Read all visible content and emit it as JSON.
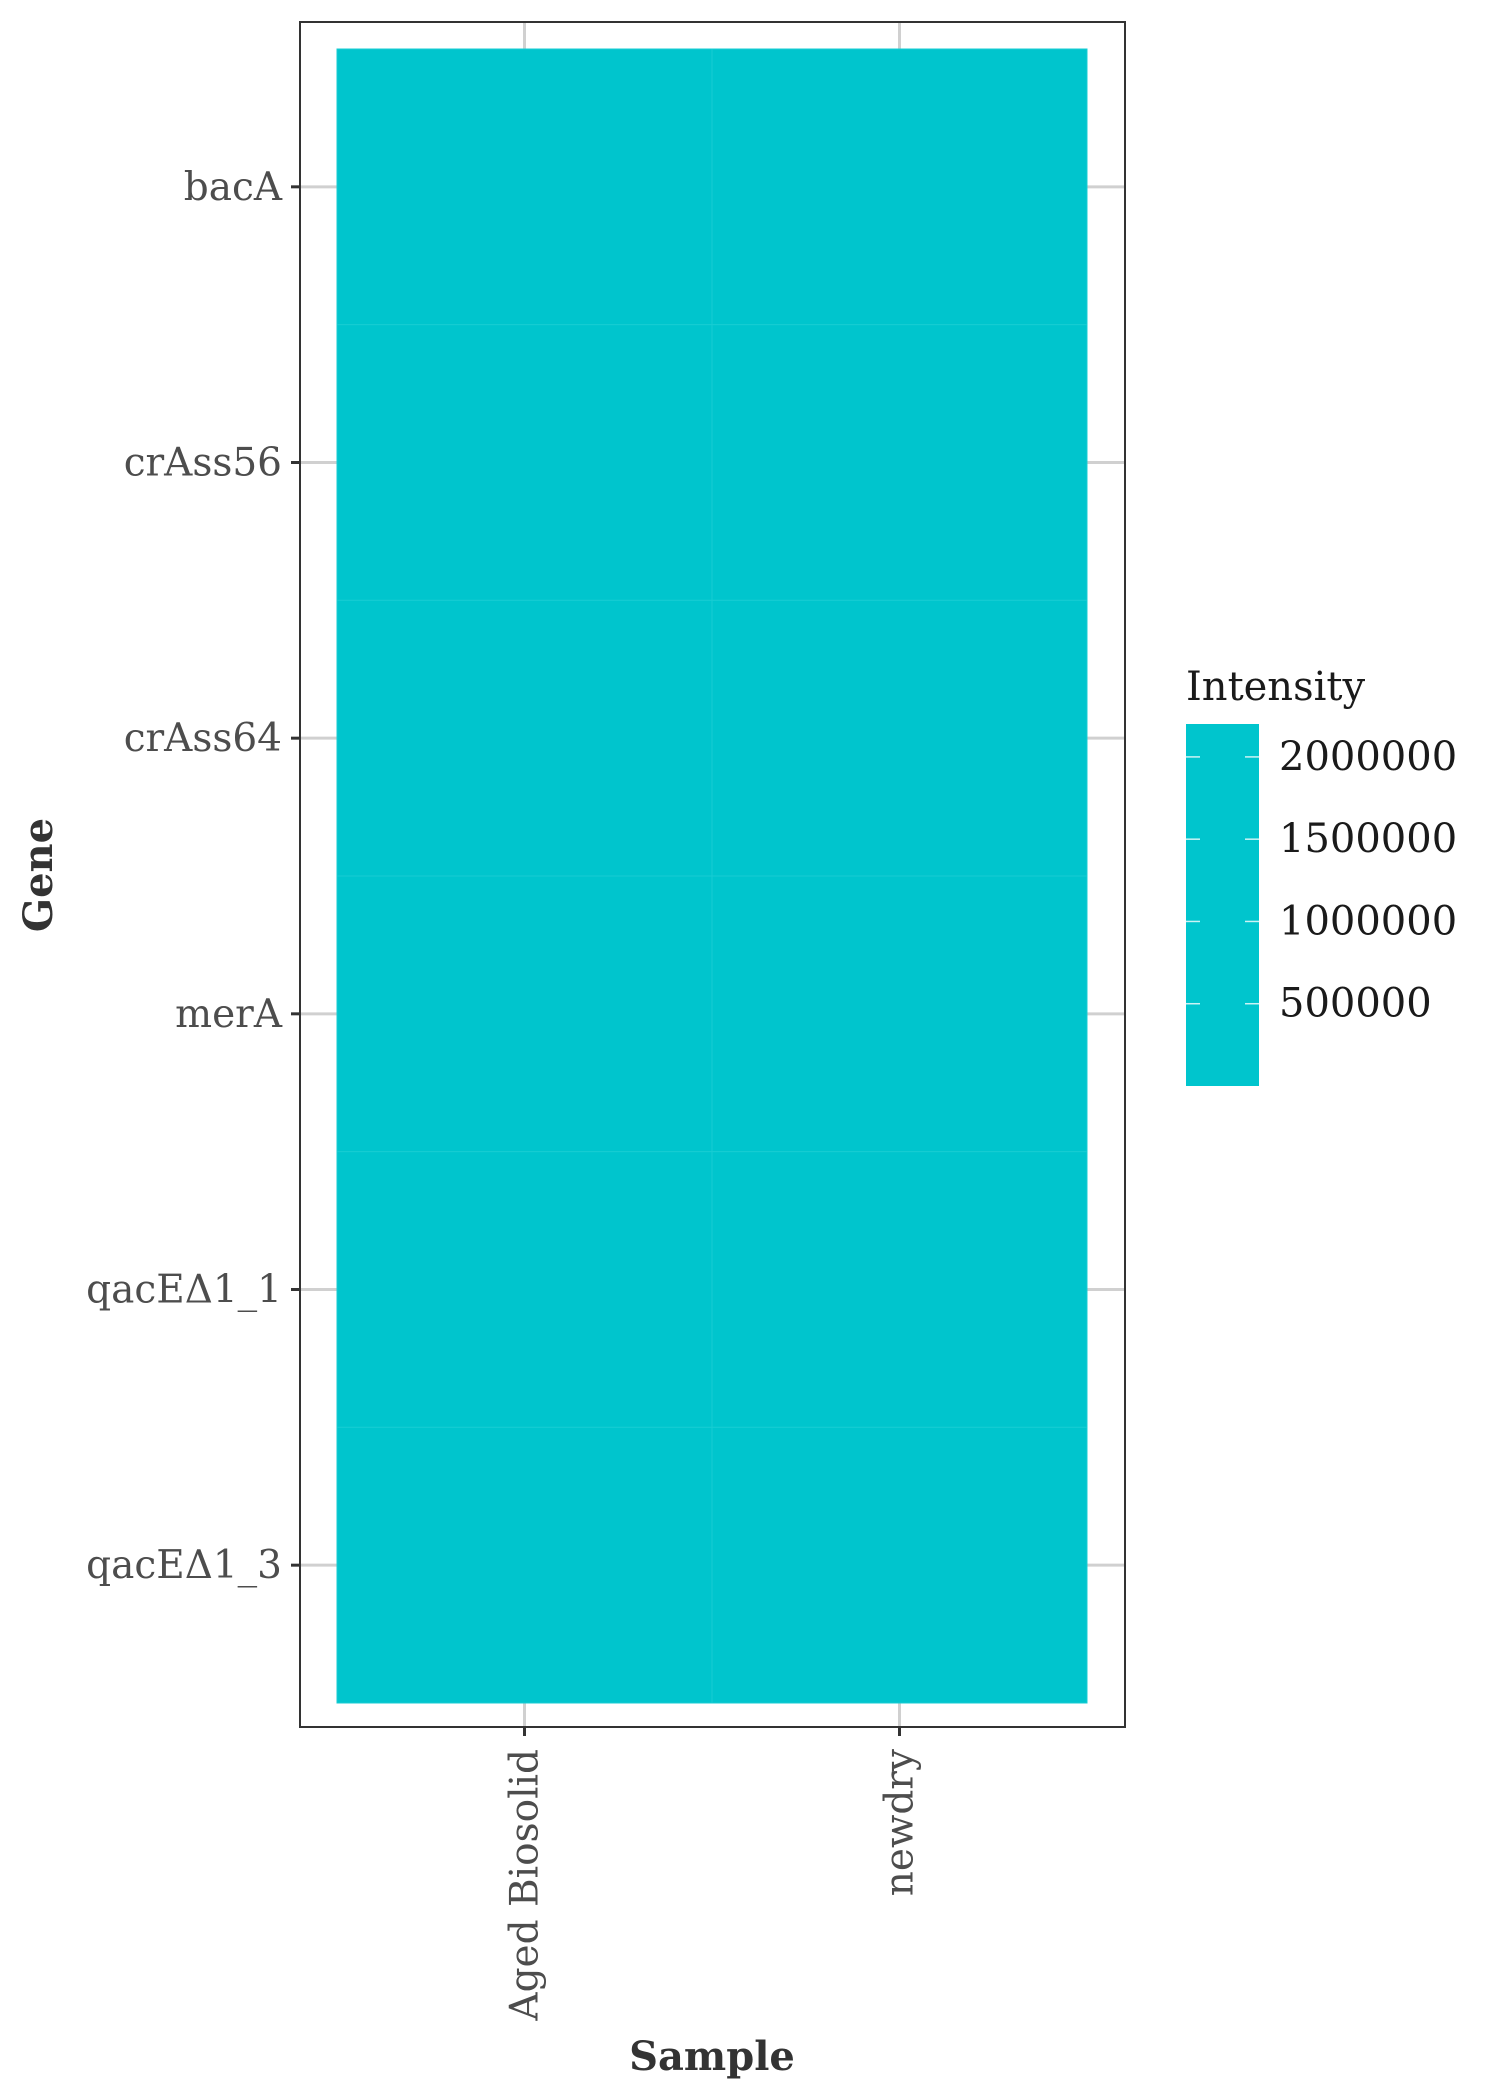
{
  "chart_data": {
    "type": "heatmap",
    "title": "",
    "xlabel": "Sample",
    "ylabel": "Gene",
    "x": [
      "Aged Biosolid",
      "newdry"
    ],
    "y": [
      "bacA",
      "crAss56",
      "crAss64",
      "merA",
      "qacEΔ1_1",
      "qacEΔ1_3"
    ],
    "cells": [
      {
        "x": "Aged Biosolid",
        "y": "bacA",
        "value": 2000000
      },
      {
        "x": "newdry",
        "y": "bacA",
        "value": 2000000
      },
      {
        "x": "Aged Biosolid",
        "y": "crAss56",
        "value": 2000000
      },
      {
        "x": "newdry",
        "y": "crAss56",
        "value": 2000000
      },
      {
        "x": "Aged Biosolid",
        "y": "crAss64",
        "value": 2000000
      },
      {
        "x": "newdry",
        "y": "crAss64",
        "value": 2000000
      },
      {
        "x": "Aged Biosolid",
        "y": "merA",
        "value": 2000000
      },
      {
        "x": "newdry",
        "y": "merA",
        "value": 2000000
      },
      {
        "x": "Aged Biosolid",
        "y": "qacEΔ1_1",
        "value": 2000000
      },
      {
        "x": "newdry",
        "y": "qacEΔ1_1",
        "value": 2000000
      },
      {
        "x": "Aged Biosolid",
        "y": "qacEΔ1_3",
        "value": 2000000
      },
      {
        "x": "newdry",
        "y": "qacEΔ1_3",
        "value": 2000000
      }
    ],
    "legend": {
      "title": "Intensity",
      "position": "right",
      "ticks": [
        2000000,
        1500000,
        1000000,
        500000
      ],
      "tick_labels": [
        "2000000",
        "1500000",
        "1000000",
        "500000"
      ],
      "range": [
        0,
        2200000
      ]
    },
    "colors": {
      "fill": "#00c5cd",
      "cell_border": "#17ccd3",
      "grid": "#d0d0d0",
      "panel_border": "#333333"
    },
    "grid": true
  }
}
